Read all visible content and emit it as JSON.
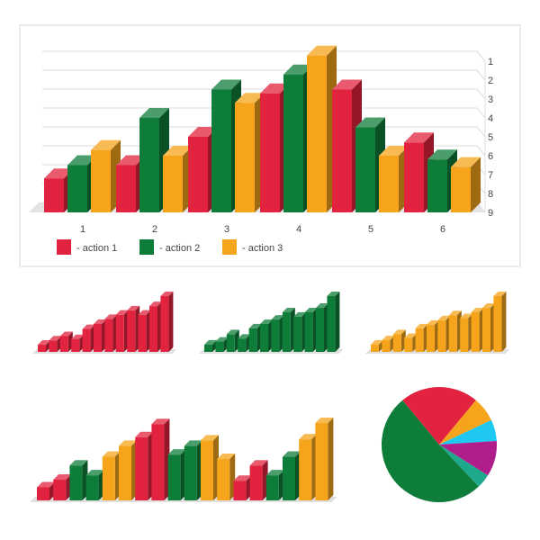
{
  "colors": {
    "red": "#e2233f",
    "green": "#0f7d3a",
    "orange": "#f5a41b",
    "cyan": "#1ec8f0",
    "magenta": "#b01e8c",
    "teal": "#1ea88c"
  },
  "chart_data": [
    {
      "type": "bar",
      "categories": [
        "1",
        "2",
        "3",
        "4",
        "5",
        "6"
      ],
      "y_tick_labels": [
        "1",
        "2",
        "3",
        "4",
        "5",
        "6",
        "7",
        "8",
        "9"
      ],
      "ylim": [
        0,
        9
      ],
      "grid": true,
      "legend_position": "bottom-left",
      "series": [
        {
          "name": "- action 1",
          "color": "red",
          "values": [
            1.8,
            2.5,
            4.0,
            6.3,
            6.5,
            3.7
          ]
        },
        {
          "name": "- action 2",
          "color": "green",
          "values": [
            2.5,
            5.0,
            6.5,
            7.3,
            4.5,
            2.8
          ]
        },
        {
          "name": "- action 3",
          "color": "orange",
          "values": [
            3.3,
            3.0,
            5.8,
            8.3,
            3.0,
            2.4
          ]
        }
      ]
    },
    {
      "type": "bar",
      "color": "red",
      "values": [
        1,
        1.6,
        2.2,
        1.8,
        3.2,
        3.9,
        4.6,
        5.2,
        5.8,
        5.2,
        6.4,
        7.8
      ]
    },
    {
      "type": "bar",
      "color": "green",
      "values": [
        1,
        1.4,
        2.4,
        1.8,
        3.2,
        3.8,
        4.4,
        5.4,
        4.8,
        5.4,
        6.0,
        7.6
      ]
    },
    {
      "type": "bar",
      "color": "orange",
      "values": [
        1,
        1.6,
        2.4,
        1.9,
        3.2,
        3.7,
        4.3,
        5.0,
        4.6,
        5.4,
        6.0,
        7.6
      ]
    },
    {
      "type": "bar",
      "colors": [
        "red",
        "red",
        "green",
        "green",
        "orange",
        "orange",
        "red",
        "red",
        "green",
        "green",
        "orange",
        "orange",
        "red",
        "red",
        "green",
        "green",
        "orange",
        "orange"
      ],
      "values": [
        1.2,
        1.9,
        3.2,
        2.3,
        4.0,
        5.0,
        5.8,
        7.0,
        4.2,
        5.0,
        5.5,
        3.8,
        1.8,
        3.2,
        2.3,
        4.0,
        5.6,
        7.1
      ]
    },
    {
      "type": "pie",
      "slices": [
        {
          "color": "red",
          "value": 22
        },
        {
          "color": "orange",
          "value": 7
        },
        {
          "color": "cyan",
          "value": 6
        },
        {
          "color": "magenta",
          "value": 10
        },
        {
          "color": "teal",
          "value": 4
        },
        {
          "color": "green",
          "value": 51
        }
      ]
    }
  ]
}
